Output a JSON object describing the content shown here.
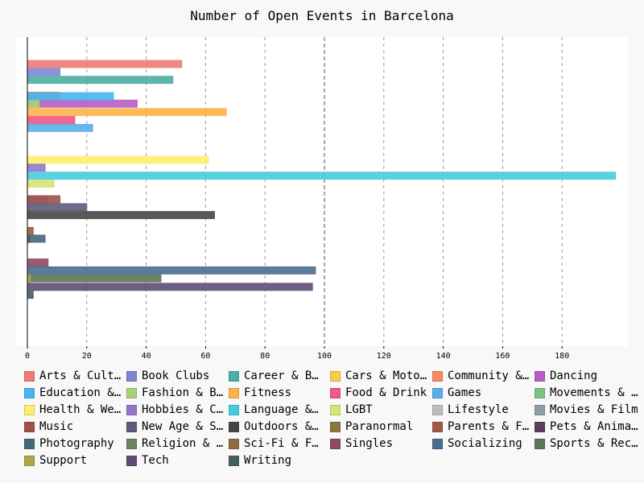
{
  "chart_data": {
    "type": "bar",
    "orientation": "horizontal",
    "title": "Number of Open Events in Barcelona",
    "xlabel": "",
    "ylabel": "",
    "xlim": [
      0,
      200
    ],
    "xticks": [
      0,
      20,
      40,
      60,
      80,
      100,
      120,
      140,
      160,
      180
    ],
    "grid": "vertical dashed",
    "legend_position": "bottom",
    "series": [
      {
        "name": "Arts & Culture",
        "value": 52,
        "color": "#f07a76"
      },
      {
        "name": "Book Clubs",
        "value": 11,
        "color": "#7f87d5"
      },
      {
        "name": "Career & Business",
        "value": 49,
        "color": "#4caea4"
      },
      {
        "name": "Cars & Motorcycles",
        "value": 0,
        "color": "#f8cb4b"
      },
      {
        "name": "Community & Environment",
        "value": 11,
        "color": "#f58a5b"
      },
      {
        "name": "Dancing",
        "value": 37,
        "color": "#b65ec5"
      },
      {
        "name": "Education & Learning",
        "value": 29,
        "color": "#45b6ee"
      },
      {
        "name": "Fashion & Beauty",
        "value": 4,
        "color": "#a8d273"
      },
      {
        "name": "Fitness",
        "value": 67,
        "color": "#fdb24a"
      },
      {
        "name": "Food & Drink",
        "value": 16,
        "color": "#ec5b84"
      },
      {
        "name": "Games",
        "value": 22,
        "color": "#5aaee8"
      },
      {
        "name": "Movements & Politics",
        "value": 0,
        "color": "#7dc184"
      },
      {
        "name": "Health & Wellbeing",
        "value": 61,
        "color": "#fdee6f"
      },
      {
        "name": "Hobbies & Crafts",
        "value": 6,
        "color": "#9676c9"
      },
      {
        "name": "Language & Ethnic Identity",
        "value": 198,
        "color": "#47ccdc"
      },
      {
        "name": "LGBT",
        "value": 9,
        "color": "#d7e373"
      },
      {
        "name": "Lifestyle",
        "value": 0,
        "color": "#bdbdbd"
      },
      {
        "name": "Movies & Film",
        "value": 7,
        "color": "#8f9ea6"
      },
      {
        "name": "Music",
        "value": 11,
        "color": "#a3504b"
      },
      {
        "name": "New Age & Spirituality",
        "value": 20,
        "color": "#5c5c7c"
      },
      {
        "name": "Outdoors & Adventure",
        "value": 63,
        "color": "#464646"
      },
      {
        "name": "Paranormal",
        "value": 0,
        "color": "#8b7542"
      },
      {
        "name": "Parents & Family",
        "value": 2,
        "color": "#a05a44"
      },
      {
        "name": "Pets & Animals",
        "value": 1,
        "color": "#5c3d5c"
      },
      {
        "name": "Photography",
        "value": 6,
        "color": "#46687a"
      },
      {
        "name": "Religion & Beliefs",
        "value": 0,
        "color": "#6e8360"
      },
      {
        "name": "Sci-Fi & Fantasy",
        "value": 0,
        "color": "#8b6b44"
      },
      {
        "name": "Singles",
        "value": 7,
        "color": "#8e4a5e"
      },
      {
        "name": "Socializing",
        "value": 97,
        "color": "#4a6c8f"
      },
      {
        "name": "Sports & Recreation",
        "value": 45,
        "color": "#5d7558"
      },
      {
        "name": "Support",
        "value": 1,
        "color": "#b2a543"
      },
      {
        "name": "Tech",
        "value": 96,
        "color": "#5e4c76"
      },
      {
        "name": "Writing",
        "value": 2,
        "color": "#456164"
      }
    ]
  }
}
